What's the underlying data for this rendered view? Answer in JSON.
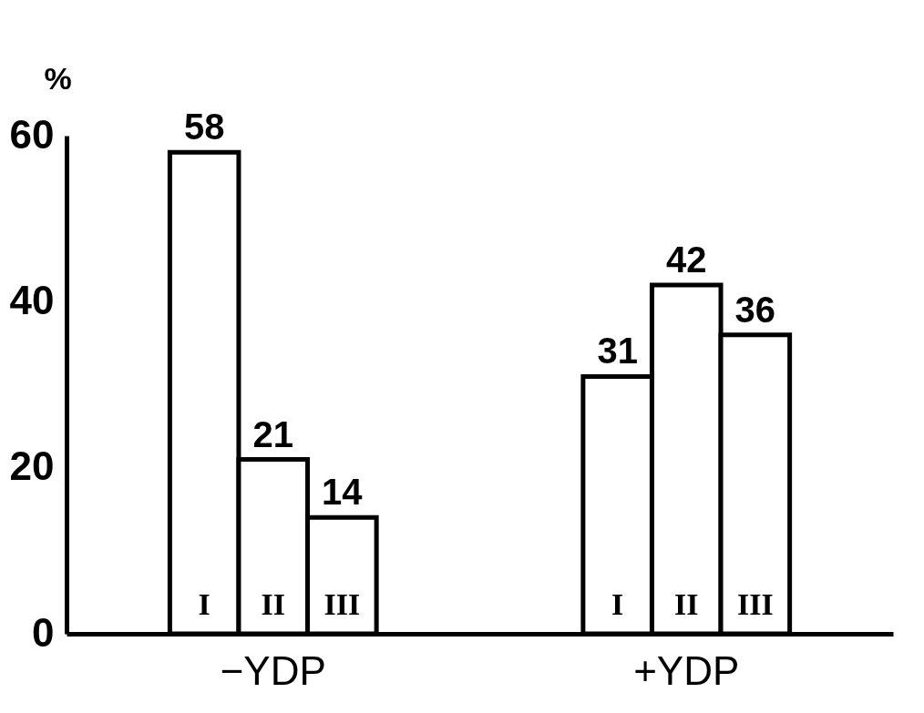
{
  "chart_data": {
    "type": "bar",
    "ylabel": "%",
    "categories": [
      "−YDP",
      "+YDP"
    ],
    "series": [
      {
        "name": "I",
        "color": "#ffffff",
        "values": [
          58,
          31
        ]
      },
      {
        "name": "II",
        "color": "#ffffff",
        "values": [
          21,
          42
        ]
      },
      {
        "name": "III",
        "color": "#ffffff",
        "values": [
          14,
          36
        ]
      }
    ],
    "ylim": [
      0,
      60
    ],
    "yticks": [
      0,
      20,
      40,
      60
    ],
    "data_labels": true,
    "grid": false,
    "legend": false
  }
}
